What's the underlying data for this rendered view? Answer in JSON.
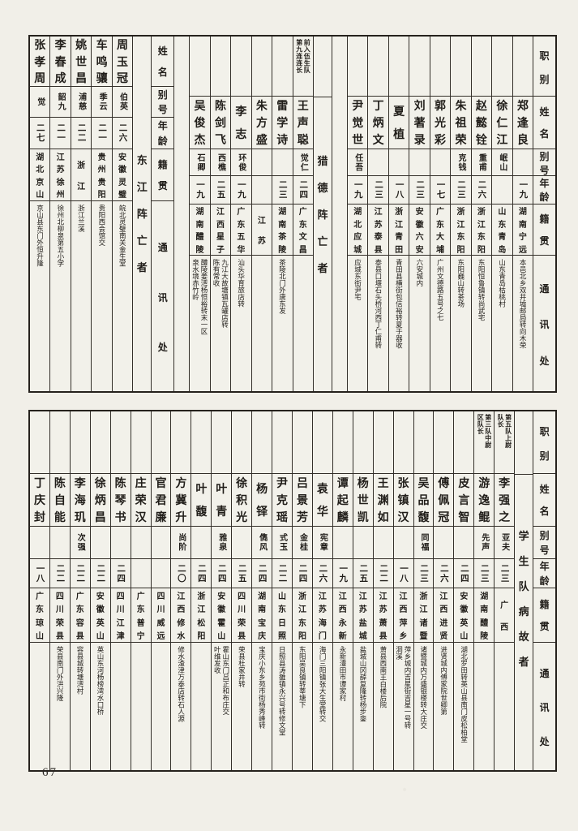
{
  "page_number": "67",
  "fields_full": [
    "职别",
    "姓名",
    "别号",
    "年龄",
    "籍贯",
    "通讯处"
  ],
  "fields_short": [
    "姓名",
    "别号",
    "年龄",
    "籍贯",
    "通讯处"
  ],
  "bands": [
    {
      "id": "top",
      "columns": [
        {
          "type": "person",
          "grid": "B",
          "name": "张孝周",
          "alias": "觉",
          "age": "二七",
          "origin": "湖北京山",
          "address": "京山县东门外恒升隆"
        },
        {
          "type": "person",
          "grid": "B",
          "name": "李春成",
          "alias": "韶九",
          "age": "二一",
          "origin": "江苏徐州",
          "address": "徐州北柳泉第五小学"
        },
        {
          "type": "person",
          "grid": "B",
          "name": "姚世昌",
          "alias": "浦慈",
          "age": "二二",
          "origin": "浙江",
          "address": "浙江兰溪"
        },
        {
          "type": "person",
          "grid": "B",
          "name": "车鸣骧",
          "alias": "季云",
          "age": "二一",
          "origin": "贵州贵阳",
          "address": "贵阳西会馆交"
        },
        {
          "type": "person",
          "grid": "B",
          "name": "周玉冠",
          "alias": "伯英",
          "age": "二六",
          "origin": "安徽灵璧",
          "address": "皖北灵璧南关金生堂"
        },
        {
          "type": "label",
          "grid": "B",
          "text": "东江阵亡者"
        },
        {
          "type": "header",
          "grid": "B",
          "fields": "short"
        },
        {
          "type": "empty"
        },
        {
          "type": "person",
          "grid": "A",
          "name": "吴俊杰",
          "duty": "",
          "alias": "石卿",
          "age": "一九",
          "origin": "湖南醴陵",
          "address": "醴陵姜湾杨恒裕转末一区\n泉水境赤竹岭"
        },
        {
          "type": "person",
          "grid": "A",
          "name": "陈剑飞",
          "duty": "",
          "alias": "西樵",
          "age": "二五",
          "origin": "江西星子",
          "address": "九江大故塘镇瓦罐店转\n陈有常收"
        },
        {
          "type": "person",
          "grid": "A",
          "name": "李志",
          "duty": "",
          "alias": "环俊",
          "age": "一九",
          "origin": "广东五华",
          "address": "汕头华育旅店转"
        },
        {
          "type": "person",
          "grid": "A",
          "name": "朱方盛",
          "duty": "",
          "alias": "",
          "age": "",
          "origin": "江苏",
          "address": ""
        },
        {
          "type": "person",
          "grid": "A",
          "name": "雷学诗",
          "duty": "",
          "alias": "",
          "age": "二三",
          "origin": "湖南茶陵",
          "address": "茶陵北门外唐东发"
        },
        {
          "type": "person",
          "grid": "A",
          "name": "王声聪",
          "duty": "前入伍生队\n第九连连长",
          "alias": "觉仁",
          "age": "二四",
          "origin": "广东文昌",
          "address": ""
        },
        {
          "type": "label",
          "grid": "A",
          "text": "猎德阵亡者"
        },
        {
          "type": "empty"
        },
        {
          "type": "person",
          "grid": "A",
          "name": "尹觉世",
          "duty": "",
          "alias": "任吾",
          "age": "一九",
          "origin": "湖北应城",
          "address": "应城东街尹宅"
        },
        {
          "type": "person",
          "grid": "A",
          "name": "丁炳文",
          "duty": "",
          "alias": "",
          "age": "二三",
          "origin": "江苏泰县",
          "address": "泰县口堰石头桥河西丁仁甫转"
        },
        {
          "type": "person",
          "grid": "A",
          "name": "夏植",
          "duty": "",
          "alias": "",
          "age": "一八",
          "origin": "浙江青田",
          "address": "青田县横街包信裕转夏于器收"
        },
        {
          "type": "person",
          "grid": "A",
          "name": "刘著录",
          "duty": "",
          "alias": "",
          "age": "二三",
          "origin": "安徽六安",
          "address": "六安城内"
        },
        {
          "type": "person",
          "grid": "A",
          "name": "郭光彩",
          "duty": "",
          "alias": "",
          "age": "一七",
          "origin": "广东大埔",
          "address": "广州文德路五号之七"
        },
        {
          "type": "person",
          "grid": "A",
          "name": "朱祖荣",
          "duty": "",
          "alias": "克钱",
          "age": "二三",
          "origin": "浙江东阳",
          "address": "东阳巍山转茶场"
        },
        {
          "type": "person",
          "grid": "A",
          "name": "赵懿铨",
          "duty": "",
          "alias": "重甫",
          "age": "二六",
          "origin": "浙江东阳",
          "address": "东阳恒鲁镇转尚武宅"
        },
        {
          "type": "person",
          "grid": "A",
          "name": "徐仁江",
          "duty": "",
          "alias": "岷山",
          "age": "",
          "origin": "山东青岛",
          "address": "山东青岛枯桃村"
        },
        {
          "type": "person",
          "grid": "A",
          "name": "郑逢良",
          "duty": "",
          "alias": "",
          "age": "一九",
          "origin": "湖南宁远",
          "address": "本邑北乡双井墟邮局转向木荣"
        },
        {
          "type": "header",
          "grid": "A",
          "fields": "full"
        }
      ]
    },
    {
      "id": "bottom",
      "columns": [
        {
          "type": "person",
          "grid": "C",
          "name": "丁庆封",
          "duty": "",
          "alias": "",
          "age": "一八",
          "origin": "广东琼山",
          "address": ""
        },
        {
          "type": "person",
          "grid": "C",
          "name": "陈自能",
          "duty": "",
          "alias": "",
          "age": "二二",
          "origin": "四川荣县",
          "address": "荣县南门外洪兴隆"
        },
        {
          "type": "person",
          "grid": "C",
          "name": "李海玑",
          "duty": "",
          "alias": "次强",
          "age": "二二",
          "origin": "广东容县",
          "address": "容县城转塘湾村"
        },
        {
          "type": "person",
          "grid": "C",
          "name": "徐炳昌",
          "duty": "",
          "alias": "",
          "age": "二二",
          "origin": "安徽英山",
          "address": "英山东河杨榜湾水口桥"
        },
        {
          "type": "person",
          "grid": "C",
          "name": "陈琴书",
          "duty": "",
          "alias": "",
          "age": "二四",
          "origin": "四川江津",
          "address": ""
        },
        {
          "type": "person",
          "grid": "C",
          "name": "庄荣汉",
          "duty": "",
          "alias": "",
          "age": "",
          "origin": "广东普宁",
          "address": ""
        },
        {
          "type": "person",
          "grid": "C",
          "name": "官君廉",
          "duty": "",
          "alias": "",
          "age": "",
          "origin": "四川威远",
          "address": ""
        },
        {
          "type": "person",
          "grid": "C",
          "name": "方冀升",
          "duty": "",
          "alias": "尚阶",
          "age": "二〇",
          "origin": "江西修水",
          "address": "修水渣津万泰店转石人源"
        },
        {
          "type": "person",
          "grid": "C",
          "name": "叶馥",
          "duty": "",
          "alias": "",
          "age": "二四",
          "origin": "浙江松阳",
          "address": ""
        },
        {
          "type": "person",
          "grid": "C",
          "name": "叶青",
          "duty": "",
          "alias": "雅泉",
          "age": "二四",
          "origin": "安徽霍山",
          "address": "霍山东门吕正和布庄交\n叶维发收"
        },
        {
          "type": "person",
          "grid": "C",
          "name": "徐积光",
          "duty": "",
          "alias": "",
          "age": "二五",
          "origin": "四川荣县",
          "address": "荣县杜家井转"
        },
        {
          "type": "person",
          "grid": "C",
          "name": "杨铎",
          "duty": "",
          "alias": "儁风",
          "age": "二四",
          "origin": "湖南宝庆",
          "address": "宝庆小东乡苑市街杨秀峰转"
        },
        {
          "type": "person",
          "grid": "C",
          "name": "尹克瑶",
          "duty": "",
          "alias": "式玉",
          "age": "二二",
          "origin": "山东日照",
          "address": "日照县涛雒镇永兴号转修文堂"
        },
        {
          "type": "person",
          "grid": "C",
          "name": "吕景芳",
          "duty": "",
          "alias": "金桂",
          "age": "二四",
          "origin": "浙江东阳",
          "address": "东阳吴良镇转莘塘下"
        },
        {
          "type": "person",
          "grid": "C",
          "name": "袁华",
          "duty": "",
          "alias": "宪章",
          "age": "二六",
          "origin": "江苏海门",
          "address": "海门三阳镇张大生堂转交"
        },
        {
          "type": "person",
          "grid": "C",
          "name": "谭起麟",
          "duty": "",
          "alias": "",
          "age": "一九",
          "origin": "江西永新",
          "address": "永新澧田市谭家村"
        },
        {
          "type": "person",
          "grid": "C",
          "name": "杨世凯",
          "duty": "",
          "alias": "",
          "age": "二五",
          "origin": "江苏盐城",
          "address": "盐城山冈薛复隆转杨步銮"
        },
        {
          "type": "person",
          "grid": "C",
          "name": "王渊如",
          "duty": "",
          "alias": "",
          "age": "二二",
          "origin": "江苏萧县",
          "address": "萧县西南王白楼后院"
        },
        {
          "type": "person",
          "grid": "C",
          "name": "张镇汉",
          "duty": "",
          "alias": "",
          "age": "一八",
          "origin": "江西萍乡",
          "address": "萍乡城内吉星街吉星一号转\n洞溪"
        },
        {
          "type": "person",
          "grid": "C",
          "name": "吴品馥",
          "duty": "",
          "alias": "同福",
          "age": "二三",
          "origin": "浙江诸暨",
          "address": "诸暨城内万盛银楼转大庄交"
        },
        {
          "type": "person",
          "grid": "C",
          "name": "傅佩冠",
          "duty": "",
          "alias": "",
          "age": "二六",
          "origin": "江西进贤",
          "address": "进贤城内傅家院世卿第"
        },
        {
          "type": "person",
          "grid": "C",
          "name": "皮言智",
          "duty": "",
          "alias": "",
          "age": "二四",
          "origin": "安徽英山",
          "address": "湖北罗田转英山县南门皮松柏堂"
        },
        {
          "type": "person",
          "grid": "C",
          "name": "游逸鲲",
          "duty": "第三队中尉\n区队长",
          "alias": "先声",
          "age": "二三",
          "origin": "湖南醴陵",
          "address": ""
        },
        {
          "type": "person",
          "grid": "C",
          "name": "李强之",
          "duty": "第五队上尉\n队长",
          "alias": "亚夫",
          "age": "二三",
          "origin": "广西",
          "address": ""
        },
        {
          "type": "label",
          "grid": "C",
          "text": "学生队病故者"
        },
        {
          "type": "header",
          "grid": "C",
          "fields": "full"
        }
      ]
    }
  ]
}
